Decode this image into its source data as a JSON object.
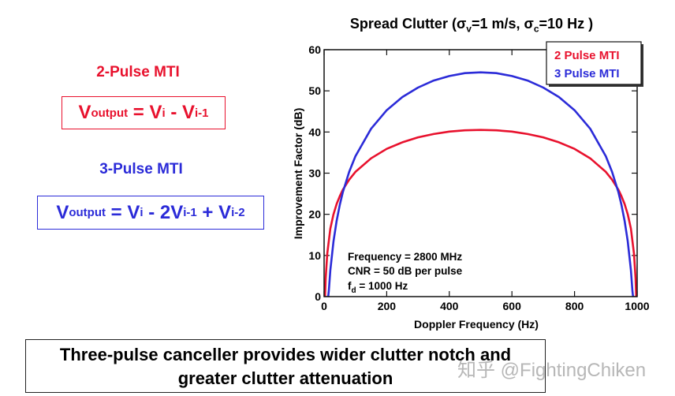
{
  "left_panel": {
    "two_pulse": {
      "heading": "2-Pulse MTI",
      "color": "#e8112d",
      "formula": {
        "lhs": "V",
        "lhs_sub": "output",
        "eq": " = ",
        "t1": "V",
        "t1_sub": "i",
        "op1": " - ",
        "t2": "V",
        "t2_sub": "i-1"
      }
    },
    "three_pulse": {
      "heading": "3-Pulse MTI",
      "color": "#2b2bd8",
      "formula": {
        "lhs": "V",
        "lhs_sub": "output",
        "eq": " = ",
        "t1": "V",
        "t1_sub": "i",
        "op1": " - 2",
        "t2": "V",
        "t2_sub": "i-1",
        "op2": " + ",
        "t3": "V",
        "t3_sub": "i-2"
      }
    }
  },
  "chart_data": {
    "type": "line",
    "title": {
      "prefix": "Spread Clutter (",
      "sigma": "σ",
      "sv_sub": "v",
      "sv_val": "=1 m/s, ",
      "sc_sub": "c",
      "sc_val": "=10 Hz )"
    },
    "xlabel": "Doppler Frequency (Hz)",
    "ylabel": "Improvement Factor (dB)",
    "xlim": [
      0,
      1000
    ],
    "ylim": [
      0,
      60
    ],
    "xticks": [
      "0",
      "200",
      "400",
      "600",
      "800",
      "1000"
    ],
    "yticks": [
      "0",
      "10",
      "20",
      "30",
      "40",
      "50",
      "60"
    ],
    "grid": false,
    "legend_placement": "top-right",
    "annotations": {
      "line1": "Frequency = 2800 MHz",
      "line2": "CNR = 50 dB per pulse",
      "line3_f": "f",
      "line3_sub": "d",
      "line3_rest": " = 1000 Hz"
    },
    "series": [
      {
        "name": "2 Pulse MTI",
        "color": "#e8112d",
        "x": [
          3,
          5,
          10,
          20,
          30,
          40,
          50,
          60,
          80,
          100,
          150,
          200,
          250,
          300,
          350,
          400,
          450,
          500,
          550,
          600,
          650,
          700,
          750,
          800,
          850,
          900,
          920,
          940,
          950,
          960,
          970,
          980,
          990,
          995,
          997
        ],
        "y": [
          0,
          4.4,
          10.4,
          16.5,
          20.0,
          22.5,
          24.4,
          26.0,
          28.4,
          30.3,
          33.6,
          35.9,
          37.5,
          38.7,
          39.5,
          40.1,
          40.4,
          40.5,
          40.4,
          40.1,
          39.5,
          38.7,
          37.5,
          35.9,
          33.6,
          30.3,
          28.4,
          26.0,
          24.4,
          22.5,
          20.0,
          16.5,
          10.4,
          4.4,
          0
        ]
      },
      {
        "name": "3 Pulse MTI",
        "color": "#2b2bd8",
        "x": [
          13,
          15,
          20,
          30,
          40,
          50,
          60,
          80,
          100,
          150,
          200,
          250,
          300,
          350,
          400,
          450,
          500,
          550,
          600,
          650,
          700,
          750,
          800,
          850,
          900,
          920,
          940,
          950,
          960,
          970,
          980,
          985,
          987
        ],
        "y": [
          0,
          1.4,
          6.4,
          13.4,
          18.4,
          22.3,
          25.4,
          30.3,
          34.1,
          40.8,
          45.3,
          48.5,
          50.8,
          52.5,
          53.6,
          54.3,
          54.5,
          54.3,
          53.6,
          52.5,
          50.8,
          48.5,
          45.3,
          40.8,
          34.1,
          30.3,
          25.4,
          22.3,
          18.4,
          13.4,
          6.4,
          1.4,
          0
        ]
      }
    ]
  },
  "conclusion": {
    "line1": "Three-pulse canceller provides wider clutter notch and",
    "line2": "greater clutter attenuation"
  },
  "watermark": "知乎 @FightingChiken"
}
